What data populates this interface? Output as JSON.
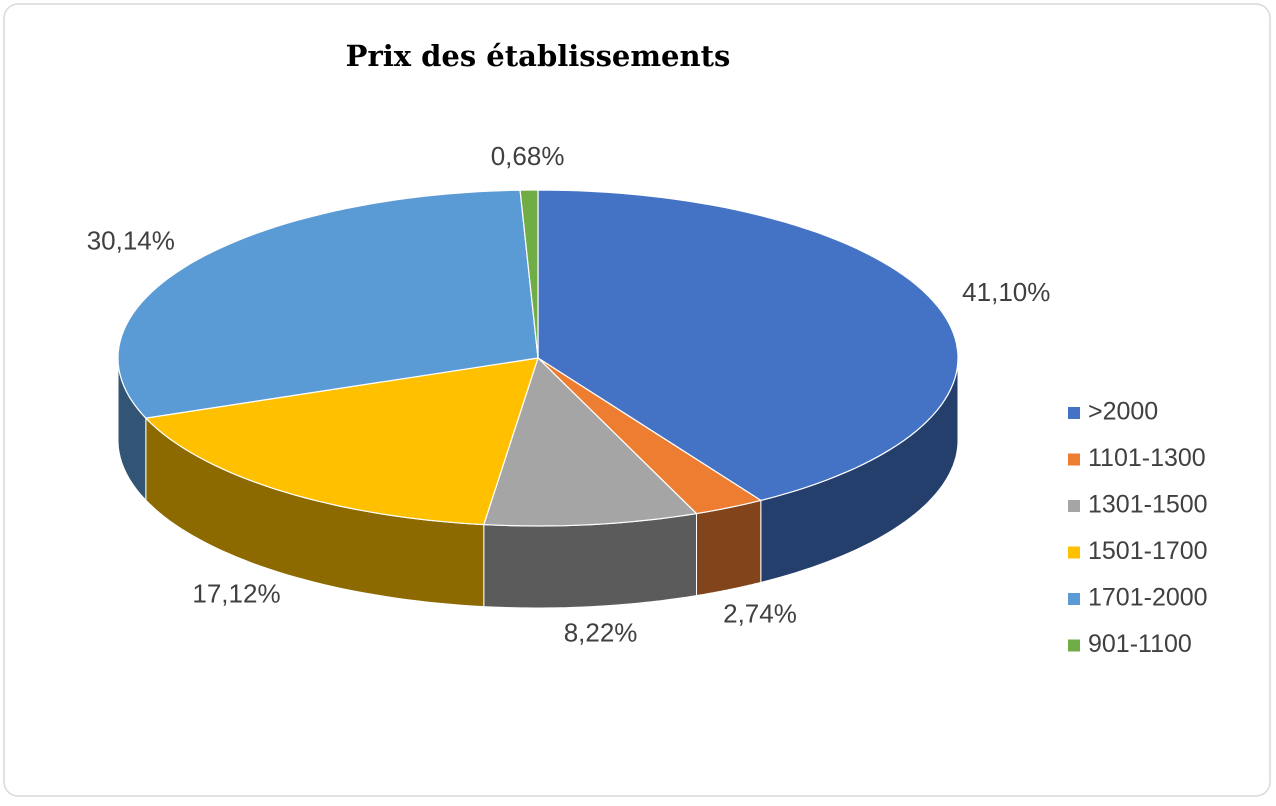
{
  "chart_data": {
    "type": "pie3d",
    "title": "Prix des établissements",
    "categories": [
      ">2000",
      "1101-1300",
      "1301-1500",
      "1501-1700",
      "1701-2000",
      "901-1100"
    ],
    "values": [
      41.1,
      2.74,
      8.22,
      17.12,
      30.14,
      0.68
    ],
    "value_labels": [
      "41,10%",
      "2,74%",
      "8,22%",
      "17,12%",
      "30,14%",
      "0,68%"
    ],
    "colors": [
      "#4472c4",
      "#ed7d31",
      "#a5a5a5",
      "#ffc000",
      "#5b9bd5",
      "#70ad47"
    ],
    "legend": "right"
  }
}
